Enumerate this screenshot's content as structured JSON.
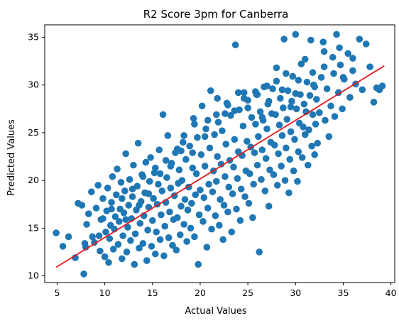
{
  "chart_data": {
    "type": "scatter",
    "title": "R2 Score 3pm for Canberra",
    "xlabel": "Actual Values",
    "ylabel": "Predicted Values",
    "xlim": [
      3.7,
      40.4
    ],
    "ylim": [
      9.3,
      36.3
    ],
    "xticks": [
      5,
      10,
      15,
      20,
      25,
      30,
      35,
      40
    ],
    "yticks": [
      10,
      15,
      20,
      25,
      30,
      35
    ],
    "grid": false,
    "legend": "none",
    "point_color": "#1f77b4",
    "line_color": "#e41a1c",
    "fit_line": {
      "x": [
        4.9,
        39.3
      ],
      "y": [
        10.9,
        32.0
      ]
    },
    "points": [
      [
        4.9,
        14.5
      ],
      [
        5.6,
        13.1
      ],
      [
        6.2,
        14.1
      ],
      [
        6.9,
        11.9
      ],
      [
        7.2,
        17.6
      ],
      [
        7.6,
        17.4
      ],
      [
        7.8,
        10.2
      ],
      [
        8.0,
        13.0
      ],
      [
        8.1,
        15.4
      ],
      [
        8.3,
        16.5
      ],
      [
        8.6,
        18.8
      ],
      [
        8.9,
        13.5
      ],
      [
        9.1,
        17.1
      ],
      [
        9.3,
        19.5
      ],
      [
        9.4,
        14.2
      ],
      [
        9.5,
        12.6
      ],
      [
        9.6,
        15.9
      ],
      [
        9.8,
        18.1
      ],
      [
        10.0,
        12.0
      ],
      [
        10.1,
        14.6
      ],
      [
        10.2,
        16.8
      ],
      [
        10.3,
        19.2
      ],
      [
        10.4,
        11.4
      ],
      [
        10.5,
        13.9
      ],
      [
        10.6,
        15.3
      ],
      [
        10.7,
        17.7
      ],
      [
        10.8,
        20.4
      ],
      [
        10.9,
        12.8
      ],
      [
        11.0,
        14.9
      ],
      [
        11.1,
        16.2
      ],
      [
        11.2,
        18.5
      ],
      [
        11.3,
        21.2
      ],
      [
        11.4,
        13.3
      ],
      [
        11.5,
        15.7
      ],
      [
        11.6,
        17.0
      ],
      [
        11.7,
        19.8
      ],
      [
        11.8,
        11.8
      ],
      [
        11.9,
        14.2
      ],
      [
        12.0,
        16.6
      ],
      [
        12.1,
        18.9
      ],
      [
        12.2,
        22.8
      ],
      [
        12.3,
        12.5
      ],
      [
        12.4,
        15.1
      ],
      [
        12.5,
        17.4
      ],
      [
        12.6,
        20.1
      ],
      [
        12.7,
        13.7
      ],
      [
        12.8,
        16.0
      ],
      [
        12.9,
        18.3
      ],
      [
        13.0,
        21.6
      ],
      [
        13.1,
        11.2
      ],
      [
        13.2,
        14.4
      ],
      [
        13.3,
        16.9
      ],
      [
        13.4,
        19.4
      ],
      [
        13.5,
        23.9
      ],
      [
        13.6,
        12.9
      ],
      [
        13.7,
        15.5
      ],
      [
        13.8,
        17.8
      ],
      [
        13.9,
        20.6
      ],
      [
        14.0,
        13.4
      ],
      [
        14.1,
        16.3
      ],
      [
        14.2,
        18.7
      ],
      [
        14.3,
        21.9
      ],
      [
        14.4,
        11.6
      ],
      [
        14.5,
        14.8
      ],
      [
        14.6,
        17.2
      ],
      [
        14.7,
        19.9
      ],
      [
        14.8,
        22.4
      ],
      [
        14.9,
        13.1
      ],
      [
        15.0,
        15.8
      ],
      [
        15.1,
        18.1
      ],
      [
        15.2,
        20.8
      ],
      [
        15.3,
        12.3
      ],
      [
        15.4,
        14.6
      ],
      [
        15.5,
        17.5
      ],
      [
        15.6,
        19.6
      ],
      [
        15.7,
        23.2
      ],
      [
        15.8,
        13.8
      ],
      [
        15.9,
        16.4
      ],
      [
        16.0,
        18.9
      ],
      [
        16.1,
        26.9
      ],
      [
        16.2,
        12.1
      ],
      [
        16.3,
        15.2
      ],
      [
        16.4,
        17.7
      ],
      [
        16.5,
        20.3
      ],
      [
        16.6,
        24.7
      ],
      [
        16.7,
        14.0
      ],
      [
        16.8,
        16.7
      ],
      [
        16.9,
        19.2
      ],
      [
        17.0,
        21.8
      ],
      [
        17.1,
        13.2
      ],
      [
        17.2,
        15.9
      ],
      [
        17.3,
        18.4
      ],
      [
        17.4,
        22.9
      ],
      [
        17.5,
        12.7
      ],
      [
        17.6,
        16.1
      ],
      [
        17.7,
        19.7
      ],
      [
        17.8,
        21.1
      ],
      [
        17.9,
        14.3
      ],
      [
        18.0,
        17.3
      ],
      [
        18.1,
        20.0
      ],
      [
        18.2,
        24.0
      ],
      [
        18.3,
        15.4
      ],
      [
        18.4,
        18.0
      ],
      [
        18.5,
        22.2
      ],
      [
        18.6,
        13.6
      ],
      [
        18.7,
        16.9
      ],
      [
        18.8,
        19.3
      ],
      [
        18.9,
        23.6
      ],
      [
        19.0,
        15.0
      ],
      [
        19.1,
        17.6
      ],
      [
        19.2,
        21.3
      ],
      [
        19.3,
        26.5
      ],
      [
        19.4,
        14.1
      ],
      [
        19.5,
        18.5
      ],
      [
        19.6,
        20.7
      ],
      [
        19.7,
        24.5
      ],
      [
        19.8,
        11.2
      ],
      [
        19.9,
        16.4
      ],
      [
        20.0,
        19.0
      ],
      [
        20.1,
        22.7
      ],
      [
        20.2,
        27.8
      ],
      [
        20.3,
        15.7
      ],
      [
        20.4,
        18.2
      ],
      [
        20.5,
        21.5
      ],
      [
        20.6,
        25.4
      ],
      [
        20.7,
        13.0
      ],
      [
        20.8,
        17.1
      ],
      [
        20.9,
        19.6
      ],
      [
        21.0,
        23.4
      ],
      [
        21.1,
        29.4
      ],
      [
        21.2,
        14.9
      ],
      [
        21.3,
        18.8
      ],
      [
        21.4,
        21.0
      ],
      [
        21.5,
        24.8
      ],
      [
        21.6,
        16.3
      ],
      [
        21.7,
        19.9
      ],
      [
        21.8,
        22.5
      ],
      [
        21.9,
        26.1
      ],
      [
        22.0,
        15.3
      ],
      [
        22.1,
        18.0
      ],
      [
        22.2,
        21.7
      ],
      [
        22.3,
        25.2
      ],
      [
        22.4,
        13.8
      ],
      [
        22.5,
        17.4
      ],
      [
        22.6,
        20.4
      ],
      [
        22.7,
        23.8
      ],
      [
        22.8,
        28.1
      ],
      [
        22.9,
        16.7
      ],
      [
        23.0,
        19.3
      ],
      [
        23.1,
        22.1
      ],
      [
        23.2,
        26.8
      ],
      [
        23.3,
        14.6
      ],
      [
        23.4,
        18.6
      ],
      [
        23.5,
        21.4
      ],
      [
        23.6,
        24.3
      ],
      [
        23.7,
        34.2
      ],
      [
        23.8,
        17.0
      ],
      [
        23.9,
        20.2
      ],
      [
        24.0,
        23.0
      ],
      [
        24.1,
        27.4
      ],
      [
        24.2,
        15.8
      ],
      [
        24.3,
        19.1
      ],
      [
        24.4,
        22.6
      ],
      [
        24.5,
        25.7
      ],
      [
        24.6,
        29.2
      ],
      [
        24.7,
        18.3
      ],
      [
        24.8,
        21.0
      ],
      [
        24.9,
        24.1
      ],
      [
        25.0,
        28.4
      ],
      [
        25.1,
        17.6
      ],
      [
        25.2,
        20.7
      ],
      [
        25.3,
        23.5
      ],
      [
        25.4,
        26.6
      ],
      [
        25.5,
        16.1
      ],
      [
        25.6,
        19.6
      ],
      [
        25.7,
        22.9
      ],
      [
        25.8,
        25.9
      ],
      [
        25.9,
        29.0
      ],
      [
        26.0,
        21.6
      ],
      [
        26.1,
        24.6
      ],
      [
        26.2,
        12.5
      ],
      [
        26.3,
        27.2
      ],
      [
        26.4,
        20.1
      ],
      [
        26.5,
        23.2
      ],
      [
        26.6,
        26.3
      ],
      [
        26.7,
        29.8
      ],
      [
        26.8,
        18.9
      ],
      [
        26.9,
        22.3
      ],
      [
        27.0,
        25.4
      ],
      [
        27.1,
        28.0
      ],
      [
        27.2,
        17.3
      ],
      [
        27.3,
        21.1
      ],
      [
        27.4,
        24.0
      ],
      [
        27.5,
        27.0
      ],
      [
        27.6,
        29.6
      ],
      [
        27.7,
        20.6
      ],
      [
        27.8,
        23.7
      ],
      [
        27.9,
        26.9
      ],
      [
        28.0,
        31.8
      ],
      [
        28.1,
        19.5
      ],
      [
        28.2,
        22.8
      ],
      [
        28.3,
        25.8
      ],
      [
        28.4,
        28.6
      ],
      [
        28.5,
        21.5
      ],
      [
        28.6,
        24.7
      ],
      [
        28.7,
        27.6
      ],
      [
        28.8,
        34.8
      ],
      [
        28.9,
        20.0
      ],
      [
        29.0,
        23.4
      ],
      [
        29.1,
        26.4
      ],
      [
        29.2,
        29.4
      ],
      [
        29.3,
        18.7
      ],
      [
        29.4,
        22.2
      ],
      [
        29.5,
        25.1
      ],
      [
        29.6,
        28.3
      ],
      [
        29.7,
        30.9
      ],
      [
        29.8,
        21.0
      ],
      [
        29.9,
        24.3
      ],
      [
        30.0,
        35.3
      ],
      [
        30.1,
        27.5
      ],
      [
        30.2,
        19.9
      ],
      [
        30.3,
        23.0
      ],
      [
        30.4,
        26.0
      ],
      [
        30.5,
        29.0
      ],
      [
        30.6,
        32.2
      ],
      [
        30.7,
        22.4
      ],
      [
        30.8,
        25.6
      ],
      [
        30.9,
        28.0
      ],
      [
        31.0,
        24.8
      ],
      [
        31.1,
        27.2
      ],
      [
        31.2,
        30.3
      ],
      [
        31.3,
        21.6
      ],
      [
        31.4,
        25.3
      ],
      [
        31.5,
        28.9
      ],
      [
        31.6,
        34.7
      ],
      [
        31.7,
        23.6
      ],
      [
        31.8,
        26.9
      ],
      [
        31.9,
        30.0
      ],
      [
        32.0,
        22.7
      ],
      [
        32.1,
        25.9
      ],
      [
        32.2,
        28.5
      ],
      [
        32.3,
        23.9
      ],
      [
        32.5,
        27.1
      ],
      [
        32.7,
        30.8
      ],
      [
        32.9,
        34.5
      ],
      [
        33.1,
        26.3
      ],
      [
        33.3,
        29.6
      ],
      [
        33.5,
        24.6
      ],
      [
        33.7,
        27.8
      ],
      [
        33.9,
        32.9
      ],
      [
        34.1,
        26.7
      ],
      [
        34.3,
        35.3
      ],
      [
        34.5,
        29.2
      ],
      [
        34.7,
        32.1
      ],
      [
        34.9,
        27.5
      ],
      [
        35.1,
        30.6
      ],
      [
        35.5,
        33.3
      ],
      [
        35.7,
        28.7
      ],
      [
        36.0,
        32.8
      ],
      [
        36.3,
        30.1
      ],
      [
        36.7,
        34.8
      ],
      [
        37.0,
        29.5
      ],
      [
        37.4,
        34.3
      ],
      [
        37.8,
        31.9
      ],
      [
        38.2,
        28.2
      ],
      [
        38.5,
        29.7
      ],
      [
        38.8,
        29.5
      ],
      [
        39.1,
        29.9
      ],
      [
        26.5,
        26.6
      ],
      [
        27.2,
        28.3
      ],
      [
        28.6,
        29.5
      ],
      [
        29.5,
        27.7
      ],
      [
        30.3,
        30.5
      ],
      [
        31.8,
        31.3
      ],
      [
        33.0,
        31.9
      ],
      [
        34.6,
        33.9
      ],
      [
        25.8,
        29.3
      ],
      [
        24.6,
        28.6
      ],
      [
        23.6,
        27.3
      ],
      [
        22.9,
        27.9
      ],
      [
        21.8,
        28.6
      ],
      [
        20.8,
        26.3
      ],
      [
        19.4,
        25.9
      ],
      [
        18.3,
        24.7
      ],
      [
        17.6,
        23.3
      ],
      [
        16.4,
        22.1
      ],
      [
        15.3,
        21.3
      ],
      [
        14.0,
        20.4
      ],
      [
        12.9,
        19.1
      ],
      [
        11.8,
        18.1
      ],
      [
        10.7,
        17.0
      ],
      [
        9.8,
        16.0
      ],
      [
        8.7,
        14.1
      ],
      [
        7.9,
        13.4
      ],
      [
        12.2,
        15.9
      ],
      [
        13.6,
        17.4
      ],
      [
        14.6,
        18.6
      ],
      [
        15.8,
        20.7
      ],
      [
        16.9,
        21.5
      ],
      [
        18.0,
        23.1
      ],
      [
        19.2,
        22.9
      ],
      [
        20.5,
        24.6
      ],
      [
        21.7,
        26.9
      ],
      [
        22.6,
        27.0
      ],
      [
        24.0,
        29.2
      ],
      [
        25.0,
        27.6
      ],
      [
        26.0,
        29.0
      ],
      [
        27.0,
        29.9
      ],
      [
        28.0,
        30.4
      ],
      [
        29.0,
        31.2
      ],
      [
        30.0,
        29.1
      ],
      [
        31.0,
        32.7
      ],
      [
        32.0,
        29.8
      ],
      [
        33.0,
        33.5
      ],
      [
        34.0,
        31.2
      ],
      [
        35.0,
        30.8
      ],
      [
        36.0,
        31.5
      ]
    ]
  }
}
